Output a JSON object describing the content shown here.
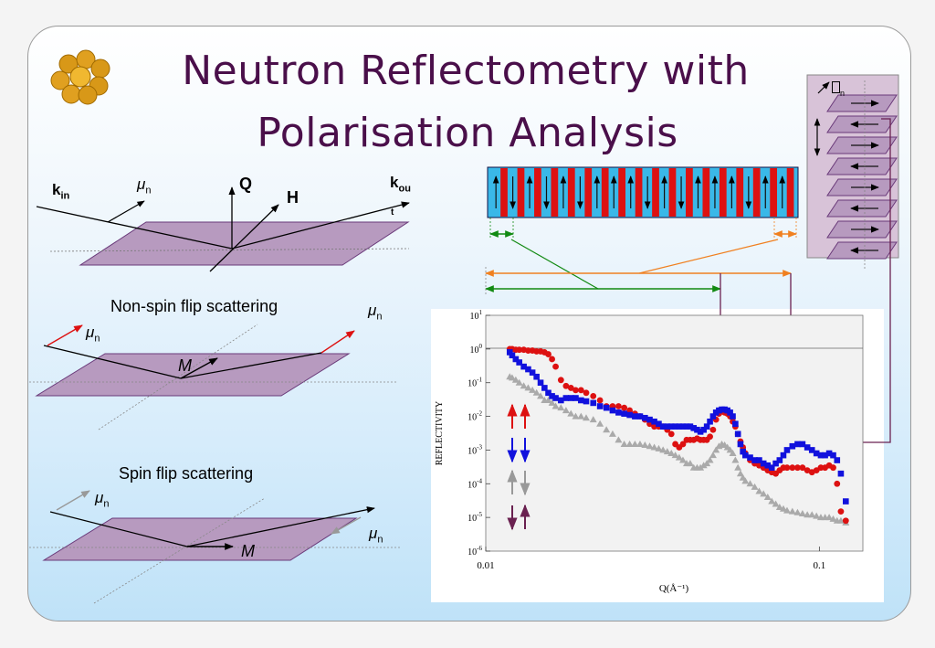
{
  "title": {
    "line1": "Neutron Reflectometry with",
    "line2": "Polarisation Analysis"
  },
  "logo": {
    "icon": "atom-cluster-icon",
    "color": "#e0a020"
  },
  "top_diagram": {
    "k_in": "k",
    "k_in_sub": "in",
    "k_out": "k",
    "k_out_sub": "ou",
    "k_out_mark": "t",
    "mu": "μ",
    "mu_sub": "n",
    "Q": "Q",
    "H": "H"
  },
  "nsf_diagram": {
    "caption": "Non-spin flip scattering",
    "mu": "μ",
    "mu_sub": "n",
    "M": "M"
  },
  "sf_diagram": {
    "caption": "Spin flip scattering",
    "mu": "μ",
    "mu_sub": "n",
    "M": "M"
  },
  "stack_label": {
    "mu_sub": "n"
  },
  "colors": {
    "plane": "#b79abf",
    "red": "#dd1111",
    "blue": "#1111dd",
    "grey": "#aaaaaa",
    "purple": "#6a2150",
    "green": "#128a12",
    "orange": "#f08020",
    "multilayer_cyan": "#3ab8e8",
    "multilayer_red": "#dd1111"
  },
  "chart_data": {
    "type": "scatter",
    "xlabel": "Q(Å⁻¹)",
    "ylabel": "REFLECTIVITY",
    "x_scale": "log",
    "y_scale": "log",
    "xlim": [
      0.01,
      0.135
    ],
    "ylim": [
      1e-06,
      10
    ],
    "x_ticks": [
      {
        "value": 0.01,
        "label": "0.01"
      },
      {
        "value": 0.1,
        "label": "0.1"
      }
    ],
    "y_ticks": [
      {
        "value": 10,
        "base": "10",
        "exp": "1"
      },
      {
        "value": 1,
        "base": "10",
        "exp": "0"
      },
      {
        "value": 0.1,
        "base": "10",
        "exp": "-1"
      },
      {
        "value": 0.01,
        "base": "10",
        "exp": "-2"
      },
      {
        "value": 0.001,
        "base": "10",
        "exp": "-3"
      },
      {
        "value": 0.0001,
        "base": "10",
        "exp": "-4"
      },
      {
        "value": 1e-05,
        "base": "10",
        "exp": "-5"
      },
      {
        "value": 1e-06,
        "base": "10",
        "exp": "-6"
      }
    ],
    "legend": [
      {
        "name": "up-up",
        "symbol": "↑↑",
        "color": "#dd1111"
      },
      {
        "name": "down-down",
        "symbol": "↓↓",
        "color": "#1111dd"
      },
      {
        "name": "up-down",
        "symbol": "↑↓",
        "color": "#999999"
      },
      {
        "name": "down-up",
        "symbol": "↓↑",
        "color": "#6a2150"
      }
    ],
    "series": [
      {
        "name": "up-up",
        "color": "#dd1111",
        "marker": "circle",
        "x": [
          0.0118,
          0.012,
          0.0123,
          0.0126,
          0.013,
          0.0134,
          0.0138,
          0.0142,
          0.0146,
          0.015,
          0.0154,
          0.0158,
          0.0162,
          0.0168,
          0.0174,
          0.018,
          0.0186,
          0.0193,
          0.02,
          0.021,
          0.022,
          0.023,
          0.024,
          0.025,
          0.026,
          0.027,
          0.028,
          0.029,
          0.03,
          0.031,
          0.032,
          0.033,
          0.034,
          0.035,
          0.036,
          0.037,
          0.038,
          0.039,
          0.04,
          0.041,
          0.042,
          0.043,
          0.044,
          0.045,
          0.046,
          0.047,
          0.048,
          0.049,
          0.05,
          0.051,
          0.052,
          0.053,
          0.054,
          0.055,
          0.056,
          0.057,
          0.058,
          0.059,
          0.06,
          0.062,
          0.064,
          0.066,
          0.068,
          0.07,
          0.072,
          0.074,
          0.076,
          0.078,
          0.08,
          0.083,
          0.086,
          0.089,
          0.092,
          0.095,
          0.098,
          0.101,
          0.104,
          0.107,
          0.11,
          0.113,
          0.116,
          0.12
        ],
        "y": [
          1.0,
          1.0,
          0.95,
          0.95,
          0.95,
          0.9,
          0.9,
          0.85,
          0.85,
          0.8,
          0.7,
          0.5,
          0.3,
          0.12,
          0.08,
          0.07,
          0.06,
          0.06,
          0.05,
          0.04,
          0.03,
          0.02,
          0.02,
          0.02,
          0.018,
          0.015,
          0.012,
          0.01,
          0.008,
          0.006,
          0.005,
          0.005,
          0.005,
          0.004,
          0.003,
          0.0015,
          0.0012,
          0.0015,
          0.002,
          0.002,
          0.002,
          0.0022,
          0.002,
          0.002,
          0.002,
          0.0025,
          0.004,
          0.008,
          0.012,
          0.014,
          0.013,
          0.012,
          0.01,
          0.007,
          0.005,
          0.003,
          0.0018,
          0.0012,
          0.0008,
          0.0005,
          0.0004,
          0.00035,
          0.0003,
          0.00025,
          0.00022,
          0.0002,
          0.00025,
          0.0003,
          0.0003,
          0.0003,
          0.0003,
          0.0003,
          0.00025,
          0.00022,
          0.00025,
          0.0003,
          0.0003,
          0.00035,
          0.0003,
          0.0001,
          1.5e-05,
          8e-06
        ]
      },
      {
        "name": "down-down",
        "color": "#1111dd",
        "marker": "square",
        "x": [
          0.0118,
          0.012,
          0.0123,
          0.0126,
          0.013,
          0.0134,
          0.0138,
          0.0142,
          0.0146,
          0.015,
          0.0154,
          0.0158,
          0.0162,
          0.0168,
          0.0174,
          0.018,
          0.0186,
          0.0193,
          0.02,
          0.021,
          0.022,
          0.023,
          0.024,
          0.025,
          0.026,
          0.027,
          0.028,
          0.029,
          0.03,
          0.031,
          0.032,
          0.033,
          0.034,
          0.035,
          0.036,
          0.037,
          0.038,
          0.039,
          0.04,
          0.041,
          0.042,
          0.043,
          0.044,
          0.045,
          0.046,
          0.047,
          0.048,
          0.049,
          0.05,
          0.051,
          0.052,
          0.053,
          0.054,
          0.055,
          0.056,
          0.057,
          0.058,
          0.059,
          0.06,
          0.062,
          0.064,
          0.066,
          0.068,
          0.07,
          0.072,
          0.074,
          0.076,
          0.078,
          0.08,
          0.083,
          0.086,
          0.089,
          0.092,
          0.095,
          0.098,
          0.101,
          0.104,
          0.107,
          0.11,
          0.113,
          0.116,
          0.12
        ],
        "y": [
          0.8,
          0.65,
          0.5,
          0.4,
          0.3,
          0.25,
          0.2,
          0.15,
          0.1,
          0.07,
          0.05,
          0.04,
          0.035,
          0.03,
          0.035,
          0.035,
          0.035,
          0.03,
          0.028,
          0.025,
          0.02,
          0.018,
          0.015,
          0.013,
          0.012,
          0.011,
          0.01,
          0.01,
          0.009,
          0.008,
          0.007,
          0.006,
          0.005,
          0.005,
          0.005,
          0.005,
          0.005,
          0.005,
          0.005,
          0.005,
          0.0045,
          0.004,
          0.0035,
          0.004,
          0.005,
          0.007,
          0.01,
          0.013,
          0.015,
          0.016,
          0.016,
          0.015,
          0.013,
          0.01,
          0.006,
          0.003,
          0.0015,
          0.0009,
          0.0007,
          0.0006,
          0.0005,
          0.0005,
          0.0004,
          0.00035,
          0.0003,
          0.0004,
          0.0005,
          0.0007,
          0.001,
          0.0013,
          0.0015,
          0.0015,
          0.0012,
          0.001,
          0.0008,
          0.0007,
          0.0007,
          0.0008,
          0.0007,
          0.0005,
          0.0002,
          3e-05
        ]
      },
      {
        "name": "spin-flip",
        "color": "#aaaaaa",
        "marker": "triangle",
        "x": [
          0.0118,
          0.012,
          0.0123,
          0.0126,
          0.013,
          0.0134,
          0.0138,
          0.0142,
          0.0146,
          0.015,
          0.0154,
          0.0158,
          0.0162,
          0.0168,
          0.0174,
          0.018,
          0.0186,
          0.0193,
          0.02,
          0.021,
          0.022,
          0.023,
          0.024,
          0.025,
          0.026,
          0.027,
          0.028,
          0.029,
          0.03,
          0.031,
          0.032,
          0.033,
          0.034,
          0.035,
          0.036,
          0.037,
          0.038,
          0.039,
          0.04,
          0.041,
          0.042,
          0.043,
          0.044,
          0.045,
          0.046,
          0.047,
          0.048,
          0.049,
          0.05,
          0.051,
          0.052,
          0.053,
          0.054,
          0.055,
          0.056,
          0.057,
          0.058,
          0.059,
          0.06,
          0.062,
          0.064,
          0.066,
          0.068,
          0.07,
          0.072,
          0.074,
          0.076,
          0.078,
          0.08,
          0.083,
          0.086,
          0.089,
          0.092,
          0.095,
          0.098,
          0.101,
          0.104,
          0.107,
          0.11,
          0.113,
          0.116,
          0.12
        ],
        "y": [
          0.15,
          0.14,
          0.12,
          0.1,
          0.08,
          0.07,
          0.06,
          0.05,
          0.04,
          0.03,
          0.03,
          0.025,
          0.02,
          0.018,
          0.015,
          0.012,
          0.01,
          0.01,
          0.009,
          0.008,
          0.006,
          0.004,
          0.003,
          0.002,
          0.0015,
          0.0015,
          0.0015,
          0.0015,
          0.0014,
          0.0013,
          0.0012,
          0.0011,
          0.001,
          0.0009,
          0.0008,
          0.0007,
          0.0006,
          0.0005,
          0.0004,
          0.0004,
          0.0003,
          0.0003,
          0.0003,
          0.00035,
          0.0004,
          0.0005,
          0.0007,
          0.001,
          0.0013,
          0.0015,
          0.0014,
          0.0012,
          0.001,
          0.0008,
          0.0005,
          0.0003,
          0.0002,
          0.00015,
          0.00012,
          0.0001,
          8e-05,
          6e-05,
          5e-05,
          4e-05,
          3e-05,
          2.5e-05,
          2e-05,
          1.8e-05,
          1.6e-05,
          1.5e-05,
          1.4e-05,
          1.3e-05,
          1.2e-05,
          1.2e-05,
          1.1e-05,
          1e-05,
          1e-05,
          1e-05,
          9e-06,
          8e-06,
          8e-06,
          7e-06
        ]
      }
    ]
  }
}
